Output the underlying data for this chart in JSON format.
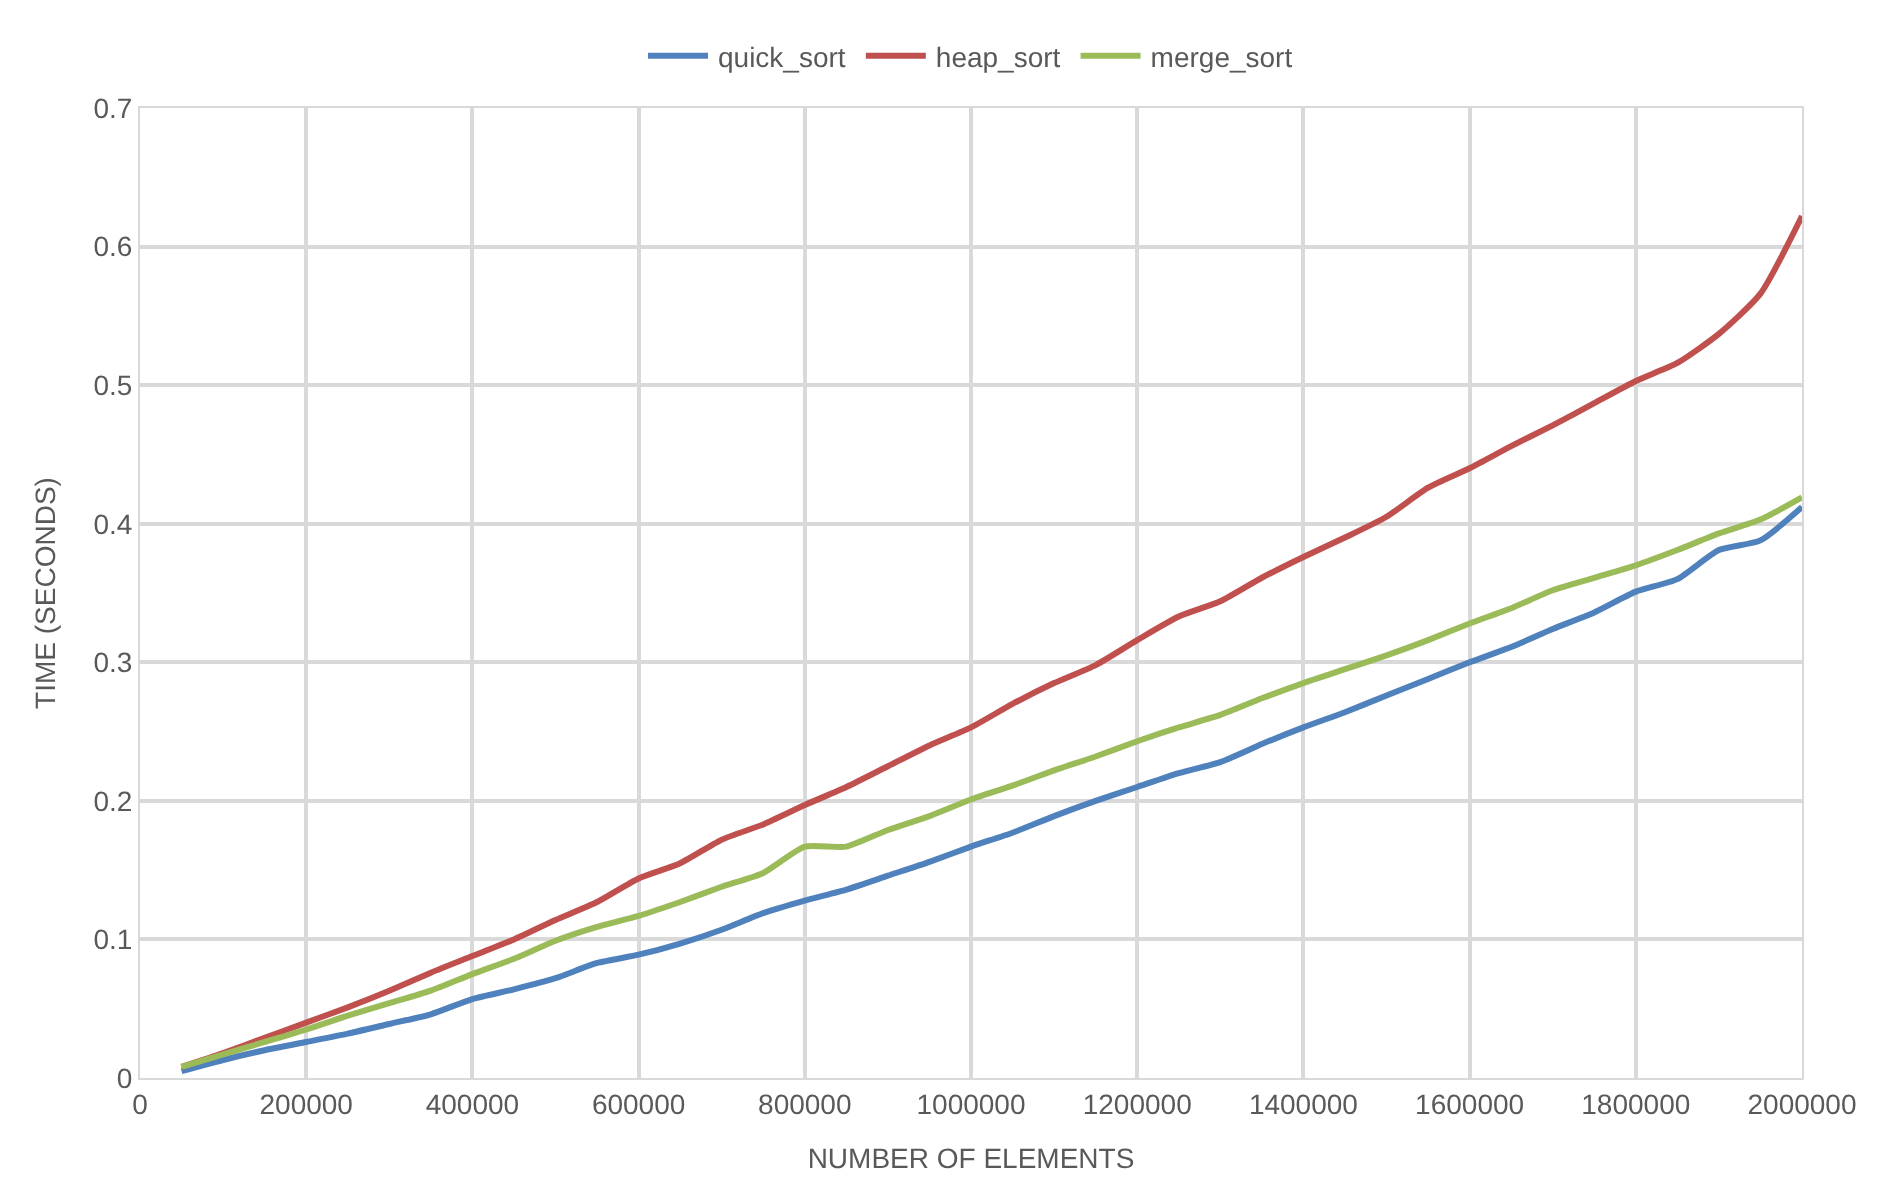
{
  "chart_data": {
    "type": "line",
    "xlabel": "NUMBER OF ELEMENTS",
    "ylabel": "TIME (SECONDS)",
    "x": [
      50000,
      100000,
      150000,
      200000,
      250000,
      300000,
      350000,
      400000,
      450000,
      500000,
      550000,
      600000,
      650000,
      700000,
      750000,
      800000,
      850000,
      900000,
      950000,
      1000000,
      1050000,
      1100000,
      1150000,
      1200000,
      1250000,
      1300000,
      1350000,
      1400000,
      1450000,
      1500000,
      1550000,
      1600000,
      1650000,
      1700000,
      1750000,
      1800000,
      1850000,
      1900000,
      1950000,
      2000000
    ],
    "series": [
      {
        "name": "quick_sort",
        "color": "#4f81bd",
        "values": [
          0.005,
          0.013,
          0.02,
          0.026,
          0.032,
          0.039,
          0.046,
          0.057,
          0.064,
          0.072,
          0.083,
          0.089,
          0.097,
          0.107,
          0.119,
          0.128,
          0.136,
          0.146,
          0.156,
          0.167,
          0.177,
          0.189,
          0.2,
          0.21,
          0.22,
          0.228,
          0.241,
          0.253,
          0.264,
          0.276,
          0.288,
          0.3,
          0.311,
          0.324,
          0.336,
          0.351,
          0.36,
          0.381,
          0.388,
          0.412
        ]
      },
      {
        "name": "heap_sort",
        "color": "#c0504d",
        "values": [
          0.008,
          0.018,
          0.029,
          0.04,
          0.051,
          0.063,
          0.076,
          0.088,
          0.1,
          0.114,
          0.127,
          0.144,
          0.155,
          0.172,
          0.183,
          0.197,
          0.21,
          0.225,
          0.24,
          0.253,
          0.27,
          0.285,
          0.298,
          0.316,
          0.333,
          0.344,
          0.361,
          0.376,
          0.39,
          0.405,
          0.426,
          0.44,
          0.456,
          0.471,
          0.487,
          0.503,
          0.516,
          0.537,
          0.566,
          0.622
        ]
      },
      {
        "name": "merge_sort",
        "color": "#9bbb59",
        "values": [
          0.008,
          0.017,
          0.026,
          0.035,
          0.045,
          0.054,
          0.063,
          0.075,
          0.086,
          0.099,
          0.109,
          0.117,
          0.127,
          0.138,
          0.148,
          0.167,
          0.167,
          0.179,
          0.189,
          0.201,
          0.211,
          0.222,
          0.232,
          0.243,
          0.253,
          0.262,
          0.274,
          0.285,
          0.295,
          0.305,
          0.316,
          0.328,
          0.339,
          0.352,
          0.361,
          0.37,
          0.381,
          0.393,
          0.403,
          0.419
        ]
      }
    ],
    "xlim": [
      0,
      2000000
    ],
    "xticks": [
      0,
      200000,
      400000,
      600000,
      800000,
      1000000,
      1200000,
      1400000,
      1600000,
      1800000,
      2000000
    ],
    "ylim": [
      0,
      0.7
    ],
    "yticks": [
      0,
      0.1,
      0.2,
      0.3,
      0.4,
      0.5,
      0.6,
      0.7
    ],
    "grid": true,
    "legend": "top",
    "marker": "none",
    "line_style": "solid"
  }
}
